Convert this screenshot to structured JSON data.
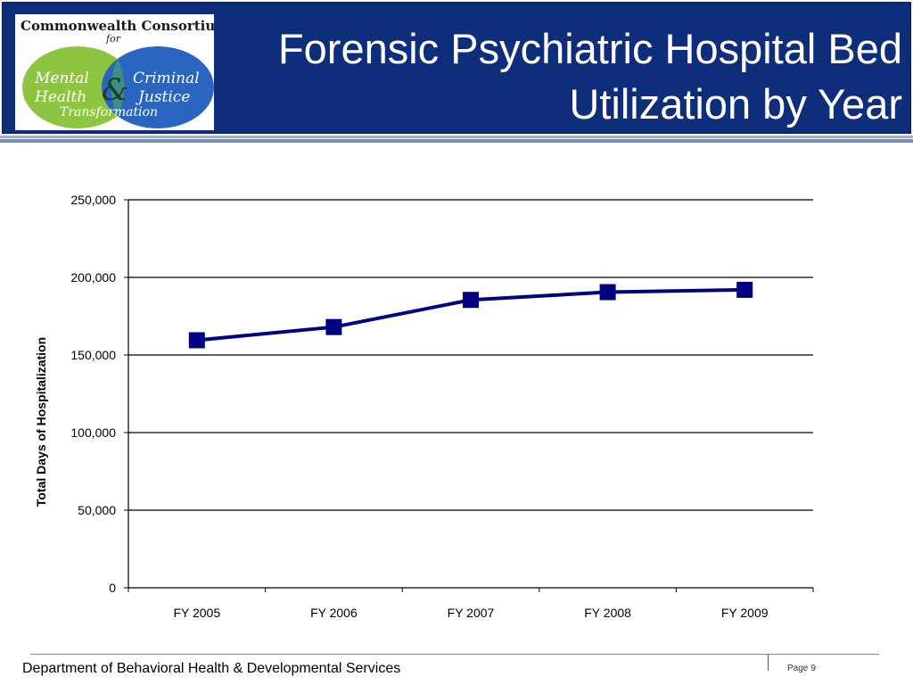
{
  "header": {
    "title_line1": "Forensic Psychiatric Hospital Bed",
    "title_line2": "Utilization by Year",
    "colors": {
      "band": "#0e2d7a",
      "title_text": "#ffffff"
    }
  },
  "logo": {
    "line1": "Commonwealth Consortium",
    "line2": "for",
    "left_circle": "Mental Health",
    "right_circle": "Criminal Justice",
    "ampersand": "&",
    "bottom": "Transformation",
    "colors": {
      "left": "#8dc540",
      "right": "#2a66c0",
      "overlap": "#3a8e8a"
    }
  },
  "chart_data": {
    "type": "line",
    "title": "",
    "categories": [
      "FY 2005",
      "FY 2006",
      "FY 2007",
      "FY 2008",
      "FY 2009"
    ],
    "series": [
      {
        "values": [
          159500,
          168000,
          185500,
          190500,
          192000
        ],
        "color": "#000080"
      }
    ],
    "xlabel": "",
    "ylabel": "Total Days of Hospitalization",
    "ylim": [
      0,
      250000
    ],
    "yticks": [
      0,
      50000,
      100000,
      150000,
      200000,
      250000
    ],
    "ytick_labels": [
      "0",
      "50,000",
      "100,000",
      "150,000",
      "200,000",
      "250,000"
    ],
    "grid": true,
    "legend": "none"
  },
  "footer": {
    "department": "Department of Behavioral Health & Developmental Services",
    "page_label": "Page",
    "page_number": "9"
  }
}
